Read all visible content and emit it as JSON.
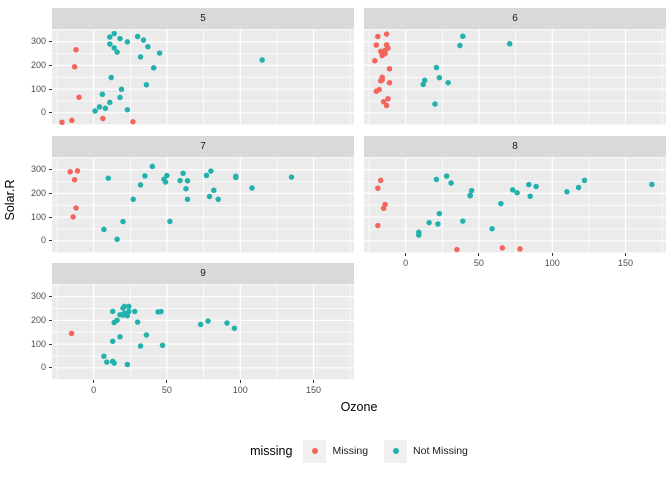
{
  "figure": {
    "background": "#FFFFFF",
    "panel_bg": "#EBEBEB",
    "strip_bg": "#D9D9D9",
    "grid_color": "#FFFFFF",
    "tick_color": "#333333",
    "tick_label_color": "#4D4D4D",
    "colors": {
      "missing": "#F3655C",
      "not_missing": "#23B1AD"
    }
  },
  "legend": {
    "title": "missing",
    "items": [
      {
        "label": "Missing",
        "color": "#F3655C"
      },
      {
        "label": "Not Missing",
        "color": "#23B1AD"
      }
    ]
  },
  "chart_data": {
    "type": "scatter",
    "title": "",
    "xlabel": "Ozone",
    "ylabel": "Solar.R",
    "facet_by": "Month",
    "grid": true,
    "legend_position": "bottom",
    "legend_title": "missing",
    "series_names": [
      "Missing",
      "Not Missing"
    ],
    "series_colors": {
      "Missing": "#F3655C",
      "Not Missing": "#23B1AD"
    },
    "x_domain": [
      -28.4,
      177.6
    ],
    "y_domain": [
      -51.4,
      353.6
    ],
    "x_ticks": [
      0,
      50,
      100,
      150
    ],
    "y_ticks": [
      0,
      100,
      200,
      300
    ],
    "x_minor_ticks": [
      -25,
      25,
      75,
      125,
      175
    ],
    "y_minor_ticks": [
      -50,
      50,
      150,
      250,
      350
    ],
    "facets": [
      {
        "label": "5",
        "row": 0,
        "col": 0,
        "axis_x": false,
        "axis_y": true,
        "missing": [
          [
            -21.6,
            -40
          ],
          [
            26.8,
            -38
          ],
          [
            -13,
            194
          ],
          [
            6.3,
            -24
          ],
          [
            -10,
            66
          ],
          [
            -12,
            266
          ],
          [
            -14.8,
            -32
          ]
        ],
        "not_missing": [
          [
            41,
            190
          ],
          [
            36,
            118
          ],
          [
            12,
            149
          ],
          [
            18,
            313
          ],
          [
            23,
            299
          ],
          [
            19,
            99
          ],
          [
            8,
            19
          ],
          [
            16,
            256
          ],
          [
            11,
            290
          ],
          [
            14,
            274
          ],
          [
            18,
            65
          ],
          [
            14,
            334
          ],
          [
            34,
            307
          ],
          [
            6,
            78
          ],
          [
            30,
            322
          ],
          [
            11,
            44
          ],
          [
            1,
            8
          ],
          [
            11,
            320
          ],
          [
            4,
            25
          ],
          [
            32,
            236
          ],
          [
            23,
            13
          ],
          [
            45,
            252
          ],
          [
            115,
            223
          ],
          [
            37,
            279
          ]
        ]
      },
      {
        "label": "6",
        "row": 0,
        "col": 1,
        "axis_x": false,
        "axis_y": false,
        "missing": [
          [
            -20,
            286
          ],
          [
            -13,
            287
          ],
          [
            -16,
            242
          ],
          [
            -11,
            186
          ],
          [
            -21,
            220
          ],
          [
            -14,
            264
          ],
          [
            -12,
            273
          ],
          [
            -17,
            259
          ],
          [
            -15,
            250
          ],
          [
            -13,
            332
          ],
          [
            -19,
            322
          ],
          [
            -16,
            150
          ],
          [
            -12,
            59
          ],
          [
            -20,
            91
          ],
          [
            -14,
            250
          ],
          [
            -17,
            135
          ],
          [
            -11,
            127
          ],
          [
            -15,
            47
          ],
          [
            -18,
            98
          ],
          [
            -13,
            31
          ],
          [
            -16,
            138
          ]
        ],
        "not_missing": [
          [
            29,
            127
          ],
          [
            71,
            291
          ],
          [
            39,
            323
          ],
          [
            23,
            148
          ],
          [
            21,
            191
          ],
          [
            37,
            284
          ],
          [
            20,
            37
          ],
          [
            12,
            120
          ],
          [
            13,
            137
          ]
        ]
      },
      {
        "label": "7",
        "row": 1,
        "col": 0,
        "axis_x": false,
        "axis_y": true,
        "missing": [
          [
            -14,
            101
          ],
          [
            -12,
            139
          ],
          [
            -16,
            291
          ],
          [
            -13,
            258
          ],
          [
            -11,
            295
          ]
        ],
        "not_missing": [
          [
            135,
            269
          ],
          [
            49,
            248
          ],
          [
            32,
            236
          ],
          [
            64,
            175
          ],
          [
            40,
            314
          ],
          [
            77,
            276
          ],
          [
            97,
            267
          ],
          [
            97,
            272
          ],
          [
            85,
            175
          ],
          [
            10,
            264
          ],
          [
            27,
            175
          ],
          [
            7,
            48
          ],
          [
            48,
            260
          ],
          [
            35,
            274
          ],
          [
            61,
            285
          ],
          [
            79,
            187
          ],
          [
            63,
            220
          ],
          [
            16,
            7
          ],
          [
            80,
            294
          ],
          [
            108,
            223
          ],
          [
            20,
            81
          ],
          [
            52,
            82
          ],
          [
            82,
            213
          ],
          [
            50,
            275
          ],
          [
            64,
            253
          ],
          [
            59,
            254
          ]
        ]
      },
      {
        "label": "8",
        "row": 1,
        "col": 1,
        "axis_x": true,
        "axis_y": false,
        "missing": [
          [
            78,
            -34
          ],
          [
            35,
            -37
          ],
          [
            66,
            -30
          ],
          [
            -19,
            222
          ],
          [
            -15,
            137
          ],
          [
            -19,
            64
          ],
          [
            -17,
            255
          ],
          [
            -14,
            153
          ]
        ],
        "not_missing": [
          [
            39,
            83
          ],
          [
            9,
            24
          ],
          [
            16,
            77
          ],
          [
            122,
            255
          ],
          [
            89,
            229
          ],
          [
            110,
            207
          ],
          [
            44,
            192
          ],
          [
            28,
            273
          ],
          [
            65,
            157
          ],
          [
            22,
            71
          ],
          [
            59,
            51
          ],
          [
            23,
            115
          ],
          [
            31,
            244
          ],
          [
            44,
            190
          ],
          [
            21,
            259
          ],
          [
            9,
            36
          ],
          [
            45,
            212
          ],
          [
            168,
            238
          ],
          [
            73,
            215
          ],
          [
            76,
            203
          ],
          [
            118,
            225
          ],
          [
            84,
            237
          ],
          [
            85,
            188
          ]
        ]
      },
      {
        "label": "9",
        "row": 2,
        "col": 0,
        "axis_x": true,
        "axis_y": true,
        "missing": [
          [
            -15,
            145
          ]
        ],
        "not_missing": [
          [
            96,
            167
          ],
          [
            78,
            197
          ],
          [
            73,
            183
          ],
          [
            91,
            189
          ],
          [
            47,
            95
          ],
          [
            32,
            92
          ],
          [
            20,
            252
          ],
          [
            23,
            220
          ],
          [
            21,
            230
          ],
          [
            24,
            259
          ],
          [
            44,
            236
          ],
          [
            21,
            259
          ],
          [
            28,
            238
          ],
          [
            9,
            24
          ],
          [
            13,
            112
          ],
          [
            46,
            237
          ],
          [
            18,
            224
          ],
          [
            13,
            27
          ],
          [
            24,
            238
          ],
          [
            16,
            201
          ],
          [
            13,
            238
          ],
          [
            23,
            14
          ],
          [
            36,
            139
          ],
          [
            7,
            49
          ],
          [
            14,
            20
          ],
          [
            30,
            193
          ],
          [
            14,
            191
          ],
          [
            18,
            131
          ],
          [
            20,
            223
          ]
        ]
      }
    ]
  }
}
